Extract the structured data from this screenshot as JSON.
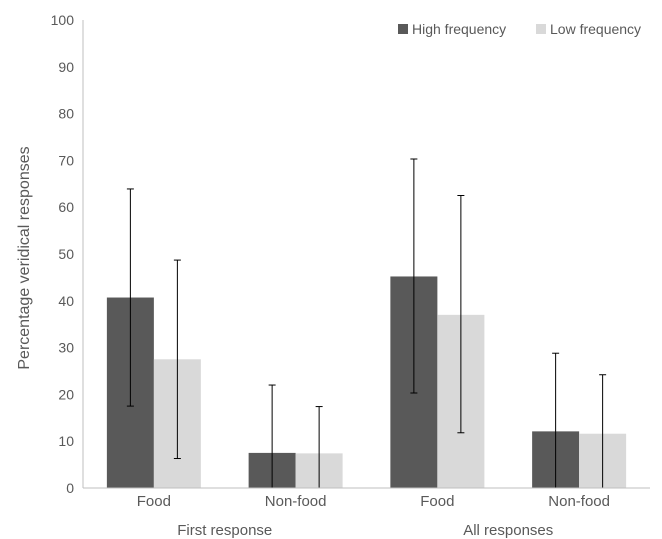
{
  "chart_data": {
    "type": "bar",
    "title": "",
    "xlabel": "",
    "ylabel": "Percentage veridical responses",
    "ylim": [
      0,
      100
    ],
    "yticks": [
      0,
      10,
      20,
      30,
      40,
      50,
      60,
      70,
      80,
      90,
      100
    ],
    "grid": false,
    "legend_position": "top-right",
    "categories": [
      "Food",
      "Non-food",
      "Food",
      "Non-food"
    ],
    "groups": [
      {
        "label": "First response",
        "categories": [
          "Food",
          "Non-food"
        ]
      },
      {
        "label": "All responses",
        "categories": [
          "Food",
          "Non-food"
        ]
      }
    ],
    "series": [
      {
        "name": "High frequency",
        "color": "#595959",
        "values": [
          40.7,
          7.5,
          45.2,
          12.1
        ],
        "error_low": [
          17.5,
          0,
          20.3,
          0
        ],
        "error_high": [
          63.9,
          22.0,
          70.3,
          28.8
        ]
      },
      {
        "name": "Low frequency",
        "color": "#d9d9d9",
        "values": [
          27.5,
          7.4,
          37.0,
          11.6
        ],
        "error_low": [
          6.3,
          0,
          11.8,
          0
        ],
        "error_high": [
          48.7,
          17.4,
          62.5,
          24.2
        ]
      }
    ]
  }
}
